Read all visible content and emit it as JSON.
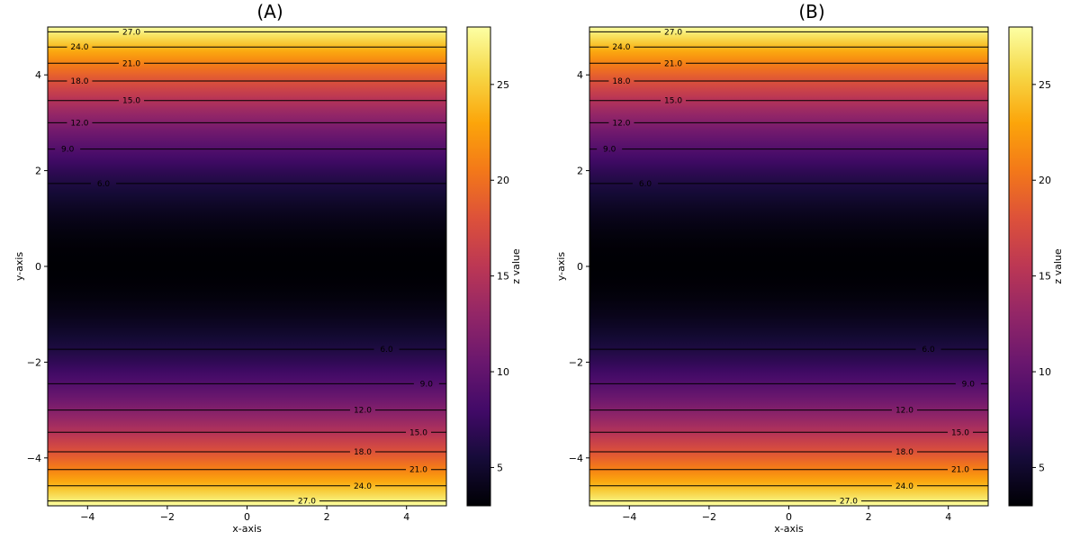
{
  "chart_data": [
    {
      "type": "contour",
      "title": "(A)",
      "xlabel": "x-axis",
      "ylabel": "y-axis",
      "xlim": [
        -5,
        5
      ],
      "ylim": [
        -5,
        5
      ],
      "x_ticks": [
        -4,
        -2,
        0,
        2,
        4
      ],
      "y_ticks": [
        -4,
        -2,
        0,
        2,
        4
      ],
      "x_tick_labels": [
        "−4",
        "−2",
        "0",
        "2",
        "4"
      ],
      "y_tick_labels": [
        "−4",
        "−2",
        "0",
        "2",
        "4"
      ],
      "function": "z = y^2 + 3",
      "colormap": "inferno",
      "colorbar": {
        "label": "z value",
        "range": [
          3,
          28
        ],
        "ticks": [
          5,
          10,
          15,
          20,
          25
        ],
        "tick_labels": [
          "5",
          "10",
          "15",
          "20",
          "25"
        ]
      },
      "contour_levels": [
        {
          "level": 6.0,
          "label": "6.0",
          "label_x_top": -3.6,
          "label_x_bottom": 3.5
        },
        {
          "level": 9.0,
          "label": "9.0",
          "label_x_top": -4.5,
          "label_x_bottom": 4.5
        },
        {
          "level": 12.0,
          "label": "12.0",
          "label_x_top": -4.2,
          "label_x_bottom": 2.9
        },
        {
          "level": 15.0,
          "label": "15.0",
          "label_x_top": -2.9,
          "label_x_bottom": 4.3
        },
        {
          "level": 18.0,
          "label": "18.0",
          "label_x_top": -4.2,
          "label_x_bottom": 2.9
        },
        {
          "level": 21.0,
          "label": "21.0",
          "label_x_top": -2.9,
          "label_x_bottom": 4.3
        },
        {
          "level": 24.0,
          "label": "24.0",
          "label_x_top": -4.2,
          "label_x_bottom": 2.9
        },
        {
          "level": 27.0,
          "label": "27.0",
          "label_x_top": -2.9,
          "label_x_bottom": 1.5
        }
      ]
    },
    {
      "type": "contour",
      "title": "(B)",
      "xlabel": "x-axis",
      "ylabel": "y-axis",
      "xlim": [
        -5,
        5
      ],
      "ylim": [
        -5,
        5
      ],
      "x_ticks": [
        -4,
        -2,
        0,
        2,
        4
      ],
      "y_ticks": [
        -4,
        -2,
        0,
        2,
        4
      ],
      "x_tick_labels": [
        "−4",
        "−2",
        "0",
        "2",
        "4"
      ],
      "y_tick_labels": [
        "−4",
        "−2",
        "0",
        "2",
        "4"
      ],
      "function": "z = y^2 + 3",
      "colormap": "inferno",
      "colorbar": {
        "label": "z value",
        "range": [
          3,
          28
        ],
        "ticks": [
          5,
          10,
          15,
          20,
          25
        ],
        "tick_labels": [
          "5",
          "10",
          "15",
          "20",
          "25"
        ]
      },
      "contour_levels": [
        {
          "level": 6.0,
          "label": "6.0",
          "label_x_top": -3.6,
          "label_x_bottom": 3.5
        },
        {
          "level": 9.0,
          "label": "9.0",
          "label_x_top": -4.5,
          "label_x_bottom": 4.5
        },
        {
          "level": 12.0,
          "label": "12.0",
          "label_x_top": -4.2,
          "label_x_bottom": 2.9
        },
        {
          "level": 15.0,
          "label": "15.0",
          "label_x_top": -2.9,
          "label_x_bottom": 4.3
        },
        {
          "level": 18.0,
          "label": "18.0",
          "label_x_top": -4.2,
          "label_x_bottom": 2.9
        },
        {
          "level": 21.0,
          "label": "21.0",
          "label_x_top": -2.9,
          "label_x_bottom": 4.3
        },
        {
          "level": 24.0,
          "label": "24.0",
          "label_x_top": -4.2,
          "label_x_bottom": 2.9
        },
        {
          "level": 27.0,
          "label": "27.0",
          "label_x_top": -2.9,
          "label_x_bottom": 1.5
        }
      ]
    }
  ]
}
